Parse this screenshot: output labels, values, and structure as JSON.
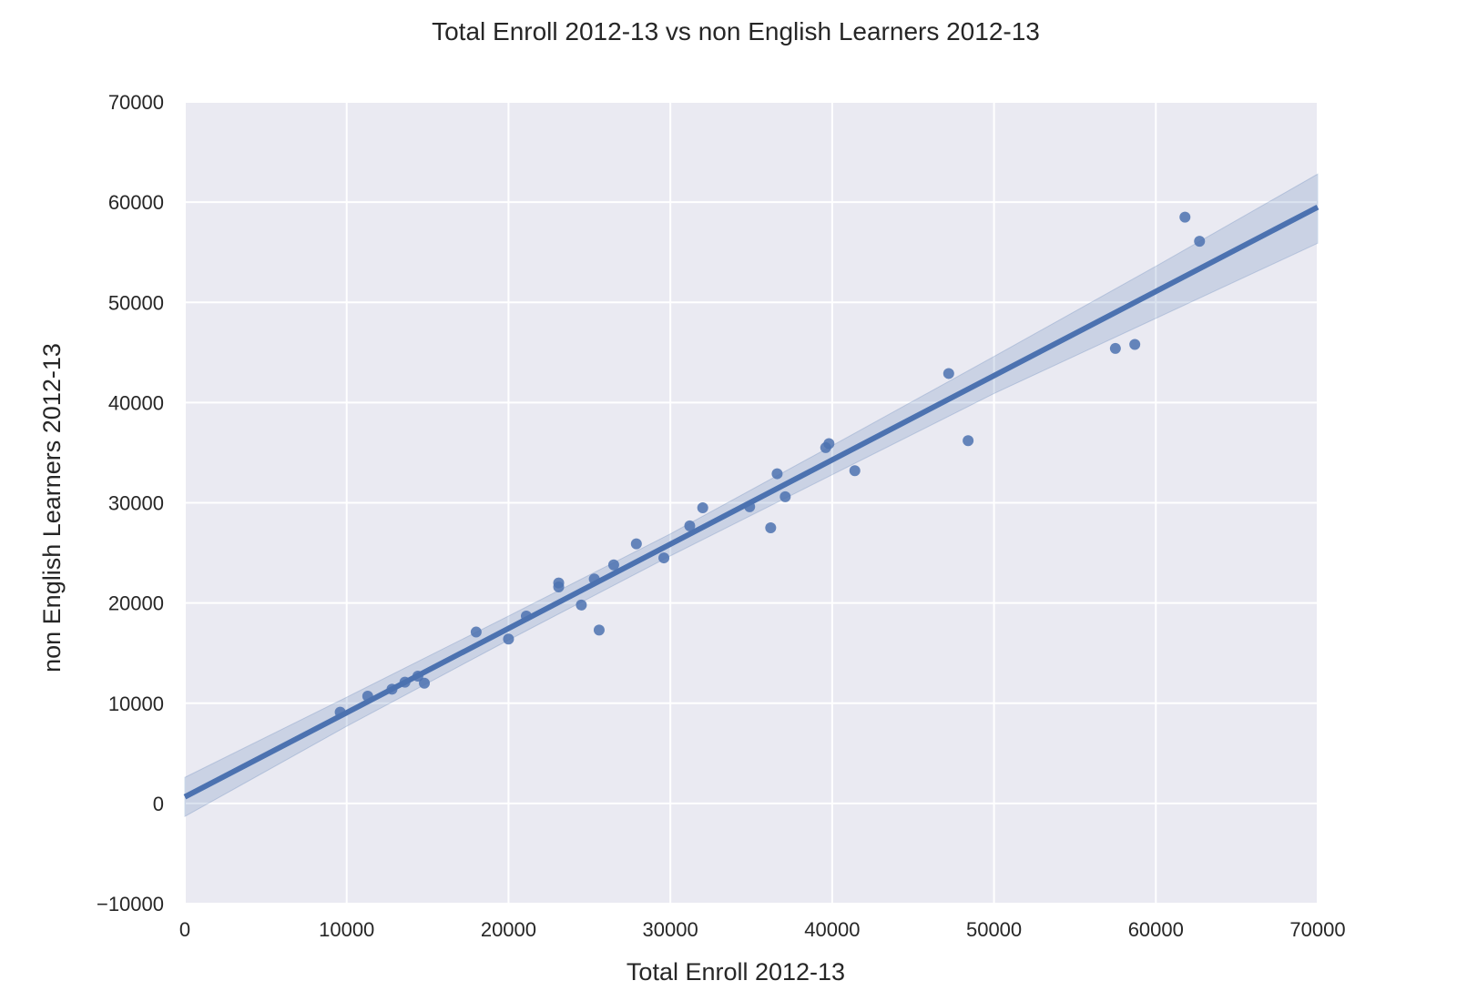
{
  "chart_data": {
    "type": "scatter",
    "title": "Total Enroll 2012-13 vs non English Learners 2012-13",
    "xlabel": "Total Enroll 2012-13",
    "ylabel": "non English Learners 2012-13",
    "xlim": [
      0,
      70000
    ],
    "ylim": [
      -10000,
      70000
    ],
    "xticks": [
      0,
      10000,
      20000,
      30000,
      40000,
      50000,
      60000,
      70000
    ],
    "yticks": [
      -10000,
      0,
      10000,
      20000,
      30000,
      40000,
      50000,
      60000,
      70000
    ],
    "xtick_labels": [
      "0",
      "10000",
      "20000",
      "30000",
      "40000",
      "50000",
      "60000",
      "70000"
    ],
    "ytick_labels": [
      "−10000",
      "0",
      "10000",
      "20000",
      "30000",
      "40000",
      "50000",
      "60000",
      "70000"
    ],
    "grid": true,
    "background_color": "#eaeaf2",
    "point_color": "#4c72b0",
    "line_color": "#4c72b0",
    "points": [
      {
        "x": 9600,
        "y": 9100
      },
      {
        "x": 11300,
        "y": 10700
      },
      {
        "x": 12800,
        "y": 11400
      },
      {
        "x": 13600,
        "y": 12100
      },
      {
        "x": 14400,
        "y": 12700
      },
      {
        "x": 14800,
        "y": 12000
      },
      {
        "x": 18000,
        "y": 17100
      },
      {
        "x": 20000,
        "y": 16400
      },
      {
        "x": 21100,
        "y": 18700
      },
      {
        "x": 23100,
        "y": 22000
      },
      {
        "x": 23100,
        "y": 21600
      },
      {
        "x": 24500,
        "y": 19800
      },
      {
        "x": 25300,
        "y": 22400
      },
      {
        "x": 25600,
        "y": 17300
      },
      {
        "x": 26500,
        "y": 23800
      },
      {
        "x": 27900,
        "y": 25900
      },
      {
        "x": 29600,
        "y": 24500
      },
      {
        "x": 31200,
        "y": 27700
      },
      {
        "x": 32000,
        "y": 29500
      },
      {
        "x": 34900,
        "y": 29600
      },
      {
        "x": 36200,
        "y": 27500
      },
      {
        "x": 36600,
        "y": 32900
      },
      {
        "x": 37100,
        "y": 30600
      },
      {
        "x": 39600,
        "y": 35500
      },
      {
        "x": 39800,
        "y": 35900
      },
      {
        "x": 41400,
        "y": 33200
      },
      {
        "x": 47200,
        "y": 42900
      },
      {
        "x": 48400,
        "y": 36200
      },
      {
        "x": 57500,
        "y": 45400
      },
      {
        "x": 58700,
        "y": 45800
      },
      {
        "x": 61800,
        "y": 58500
      },
      {
        "x": 62700,
        "y": 56100
      }
    ],
    "regression_line": {
      "x": [
        0,
        70000
      ],
      "y": [
        650,
        59500
      ]
    },
    "confidence_band": {
      "x": [
        0,
        10000,
        20000,
        30000,
        40000,
        50000,
        60000,
        70000
      ],
      "lower": [
        -1300,
        7700,
        16300,
        24700,
        32800,
        40900,
        48400,
        55900
      ],
      "upper": [
        2600,
        10600,
        18700,
        26900,
        35700,
        44600,
        53600,
        62800
      ]
    }
  }
}
